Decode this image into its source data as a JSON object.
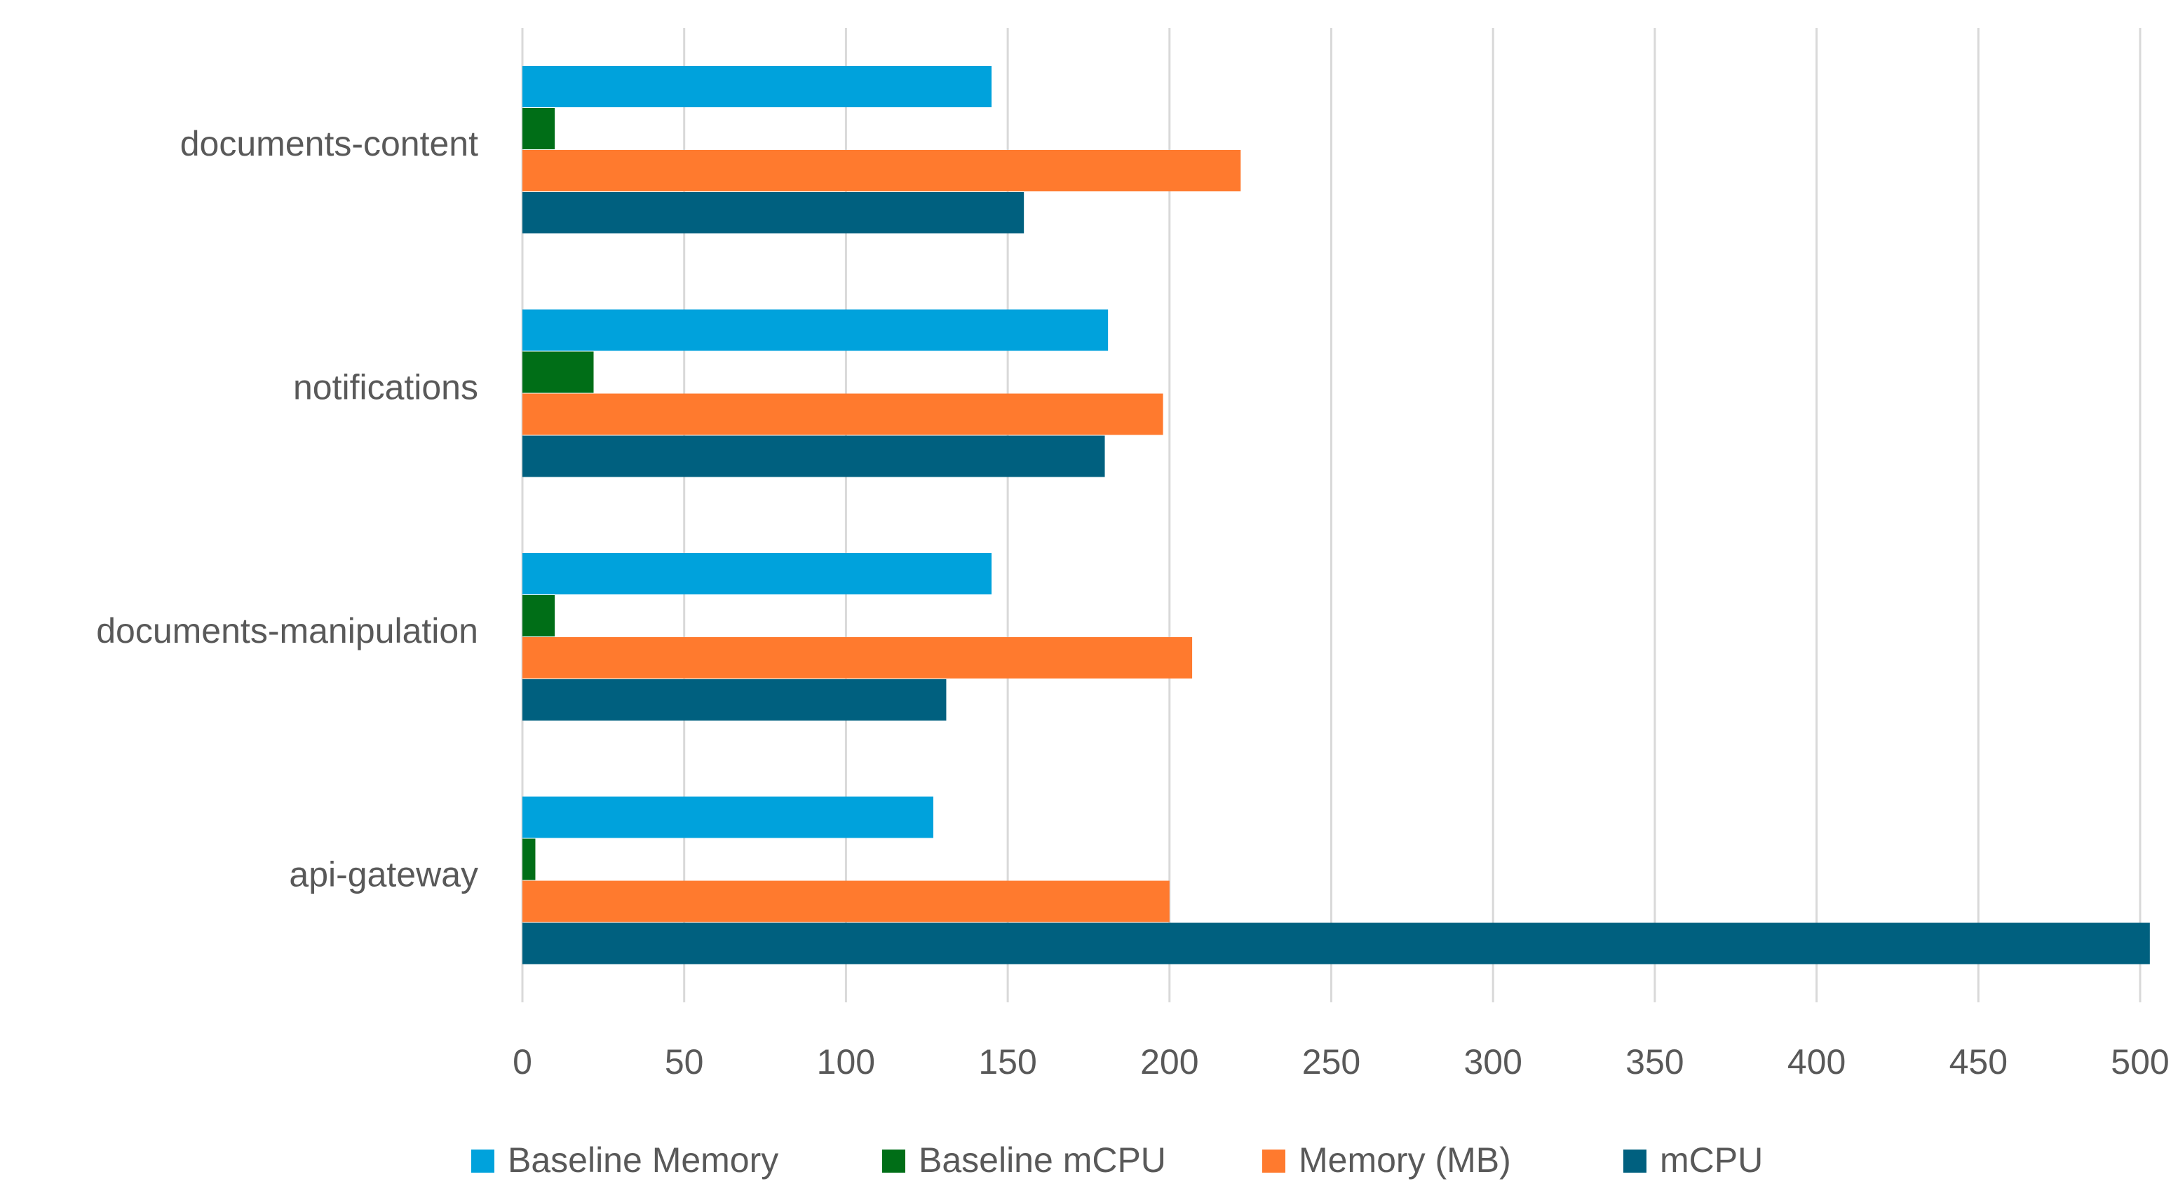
{
  "chart_data": {
    "type": "bar",
    "orientation": "horizontal",
    "categories": [
      "documents-content",
      "notifications",
      "documents-manipulation",
      "api-gateway"
    ],
    "series": [
      {
        "name": "Baseline Memory",
        "color": "#00a2dc",
        "values": [
          145,
          181,
          145,
          127
        ]
      },
      {
        "name": "Baseline mCPU",
        "color": "#006e17",
        "values": [
          10,
          22,
          10,
          4
        ]
      },
      {
        "name": "Memory (MB)",
        "color": "#ff7a2e",
        "values": [
          222,
          198,
          207,
          200
        ]
      },
      {
        "name": "mCPU",
        "color": "#00607f",
        "values": [
          155,
          180,
          131,
          503
        ]
      }
    ],
    "xaxis": {
      "min": 0,
      "max": 500,
      "step": 50,
      "ticks": [
        "0",
        "50",
        "100",
        "150",
        "200",
        "250",
        "300",
        "350",
        "400",
        "450",
        "500"
      ]
    },
    "title": "",
    "xlabel": "",
    "ylabel": "",
    "grid": "vertical",
    "legend_position": "bottom"
  }
}
